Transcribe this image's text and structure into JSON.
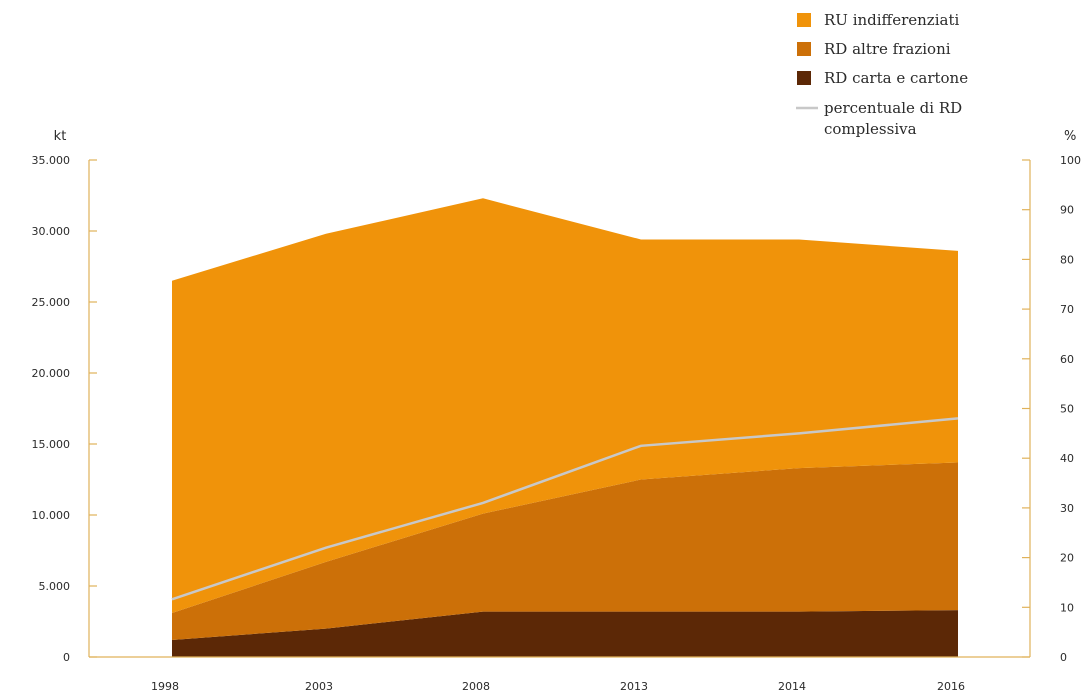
{
  "chart_data": {
    "type": "area",
    "stacked": true,
    "x": [
      "1998",
      "2003",
      "2008",
      "2013",
      "2014",
      "2016"
    ],
    "series": [
      {
        "name": "RD carta e cartone",
        "values": [
          1200,
          2000,
          3200,
          3200,
          3200,
          3300
        ],
        "color": "#5c2806"
      },
      {
        "name": "RD altre frazioni",
        "values": [
          1900,
          4700,
          6900,
          9300,
          10100,
          10400
        ],
        "color": "#cc7008"
      },
      {
        "name": "RU indifferenziati",
        "values": [
          23400,
          23100,
          22200,
          16900,
          16100,
          14900
        ],
        "color": "#f0930a"
      }
    ],
    "line_series": {
      "name": "percentuale di RD complessiva",
      "values": [
        11.6,
        22,
        31,
        42.5,
        45,
        48
      ],
      "color": "#c8c8c8"
    },
    "y_left": {
      "label": "kt",
      "ylim": [
        0,
        35000
      ],
      "ticks": [
        0,
        5000,
        10000,
        15000,
        20000,
        25000,
        30000,
        35000
      ],
      "tick_labels": [
        "0",
        "5.000",
        "10.000",
        "15.000",
        "20.000",
        "25.000",
        "30.000",
        "35.000"
      ]
    },
    "y_right": {
      "label": "%",
      "ylim": [
        0,
        100
      ],
      "ticks": [
        0,
        10,
        20,
        30,
        40,
        50,
        60,
        70,
        80,
        90,
        100
      ],
      "tick_labels": [
        "0",
        "10",
        "20",
        "30",
        "40",
        "50",
        "60",
        "70",
        "80",
        "90",
        "100"
      ]
    },
    "legend": {
      "placement": "top-right",
      "items": [
        {
          "label": "RU indifferenziati",
          "kind": "swatch",
          "color": "#f0930a"
        },
        {
          "label": "RD altre frazioni",
          "kind": "swatch",
          "color": "#cc7008"
        },
        {
          "label": "RD carta e cartone",
          "kind": "swatch",
          "color": "#5c2806"
        },
        {
          "label_lines": [
            "percentuale di RD",
            "complessiva"
          ],
          "kind": "line",
          "color": "#c8c8c8"
        }
      ]
    },
    "axis_color": "#e0b25a",
    "grid": false
  }
}
